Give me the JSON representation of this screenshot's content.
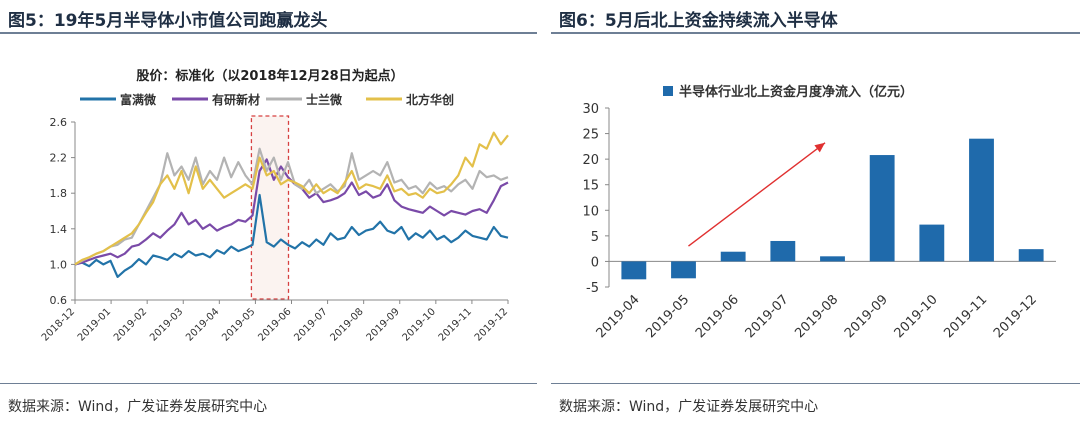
{
  "left": {
    "title": "图5：19年5月半导体小市值公司跑赢龙头",
    "source": "数据来源：Wind，广发证券发展研究中心",
    "chart_data": {
      "type": "line",
      "title": "股价：标准化（以2018年12月28日为起点）",
      "ylim": [
        0.6,
        2.6
      ],
      "yticks": [
        "0.6",
        "1.0",
        "1.4",
        "1.8",
        "2.2",
        "2.6"
      ],
      "xticks": [
        "2018-12",
        "2019-01",
        "2019-02",
        "2019-03",
        "2019-04",
        "2019-05",
        "2019-06",
        "2019-07",
        "2019-08",
        "2019-09",
        "2019-10",
        "2019-11",
        "2019-12"
      ],
      "highlight": {
        "from": "2019-05",
        "to": "2019-06"
      },
      "series": [
        {
          "name": "富满微",
          "color": "#2273a8",
          "values": [
            1.0,
            1.02,
            0.98,
            1.05,
            1.0,
            1.04,
            0.86,
            0.93,
            0.98,
            1.06,
            1.0,
            1.1,
            1.08,
            1.05,
            1.12,
            1.08,
            1.15,
            1.1,
            1.12,
            1.08,
            1.16,
            1.12,
            1.2,
            1.15,
            1.18,
            1.22,
            1.78,
            1.25,
            1.2,
            1.28,
            1.22,
            1.18,
            1.25,
            1.2,
            1.28,
            1.22,
            1.35,
            1.28,
            1.3,
            1.42,
            1.33,
            1.38,
            1.4,
            1.48,
            1.38,
            1.35,
            1.42,
            1.28,
            1.35,
            1.3,
            1.38,
            1.28,
            1.32,
            1.25,
            1.3,
            1.38,
            1.32,
            1.3,
            1.28,
            1.42,
            1.32,
            1.3
          ]
        },
        {
          "name": "有研新材",
          "color": "#7a4aa8",
          "values": [
            1.0,
            1.02,
            1.05,
            1.08,
            1.1,
            1.12,
            1.08,
            1.12,
            1.2,
            1.22,
            1.28,
            1.35,
            1.3,
            1.38,
            1.45,
            1.58,
            1.45,
            1.5,
            1.4,
            1.45,
            1.38,
            1.42,
            1.45,
            1.5,
            1.48,
            1.55,
            2.05,
            2.18,
            1.95,
            2.1,
            1.98,
            1.9,
            1.85,
            1.75,
            1.8,
            1.7,
            1.72,
            1.75,
            1.8,
            1.92,
            1.78,
            1.82,
            1.75,
            1.78,
            1.9,
            1.72,
            1.65,
            1.62,
            1.6,
            1.58,
            1.65,
            1.6,
            1.55,
            1.6,
            1.58,
            1.56,
            1.6,
            1.62,
            1.58,
            1.72,
            1.88,
            1.92
          ]
        },
        {
          "name": "士兰微",
          "color": "#b3b3b3",
          "values": [
            1.0,
            1.04,
            1.08,
            1.12,
            1.15,
            1.2,
            1.22,
            1.28,
            1.3,
            1.45,
            1.6,
            1.75,
            1.9,
            2.25,
            2.0,
            2.1,
            1.95,
            2.2,
            1.9,
            2.05,
            1.95,
            2.2,
            1.98,
            2.15,
            2.0,
            1.9,
            2.3,
            2.05,
            2.2,
            1.95,
            2.15,
            1.9,
            1.85,
            1.95,
            1.8,
            1.85,
            1.9,
            1.82,
            1.88,
            2.25,
            1.95,
            2.0,
            2.05,
            2.0,
            2.15,
            1.92,
            1.95,
            1.85,
            1.88,
            1.8,
            1.92,
            1.85,
            1.88,
            1.82,
            1.9,
            1.95,
            1.85,
            2.05,
            1.98,
            2.0,
            1.95,
            1.98
          ]
        },
        {
          "name": "北方华创",
          "color": "#e3c04a",
          "values": [
            1.0,
            1.05,
            1.08,
            1.12,
            1.15,
            1.2,
            1.25,
            1.3,
            1.35,
            1.45,
            1.58,
            1.7,
            1.9,
            2.0,
            1.85,
            2.05,
            1.8,
            2.1,
            1.85,
            1.95,
            1.85,
            1.75,
            1.8,
            1.85,
            1.9,
            1.85,
            2.2,
            2.0,
            2.05,
            1.9,
            1.95,
            1.92,
            1.88,
            1.8,
            1.9,
            1.8,
            1.85,
            1.8,
            1.92,
            2.05,
            1.85,
            1.9,
            1.88,
            1.85,
            2.0,
            1.82,
            1.85,
            1.78,
            1.8,
            1.75,
            1.85,
            1.8,
            1.82,
            1.9,
            2.0,
            2.2,
            2.1,
            2.35,
            2.3,
            2.48,
            2.35,
            2.45
          ]
        }
      ]
    }
  },
  "right": {
    "title": "图6：5月后北上资金持续流入半导体",
    "source": "数据来源：Wind，广发证券发展研究中心",
    "chart_data": {
      "type": "bar",
      "legend": "半导体行业北上资金月度净流入（亿元）",
      "color": "#1f6aab",
      "categories": [
        "2019-04",
        "2019-05",
        "2019-06",
        "2019-07",
        "2019-08",
        "2019-09",
        "2019-10",
        "2019-11",
        "2019-12"
      ],
      "values": [
        -3.5,
        -3.3,
        1.9,
        4.0,
        1.0,
        20.8,
        7.2,
        24.0,
        2.4
      ],
      "ylim": [
        -5,
        30
      ],
      "yticks": [
        "-5",
        "0",
        "5",
        "10",
        "15",
        "20",
        "25",
        "30"
      ]
    }
  }
}
